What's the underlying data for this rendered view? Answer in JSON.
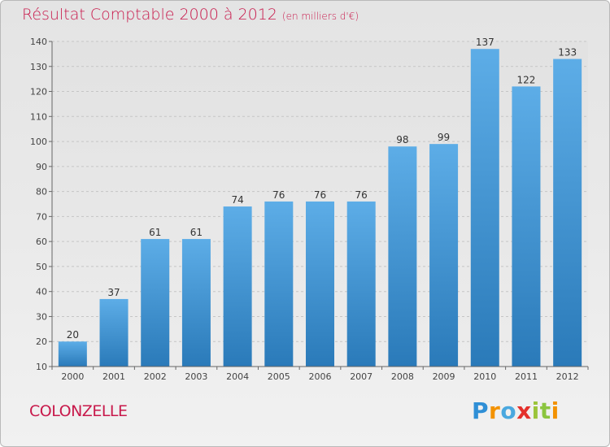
{
  "title": "Résultat Comptable 2000 à 2012",
  "subtitle": "(en milliers d'€)",
  "place": "COLONZELLE",
  "logo": {
    "letters": [
      "P",
      "r",
      "o",
      "x",
      "i",
      "t",
      "i"
    ],
    "colors": [
      "#2f8fd6",
      "#f39200",
      "#4aa8df",
      "#e4302b",
      "#9bc43a",
      "#8bc53f",
      "#f39200"
    ]
  },
  "colors": {
    "title": "#c8194b",
    "bar_top": "#5dade7",
    "bar_bottom": "#2a7ab9",
    "axis": "#666666",
    "grid": "#c5c5c5"
  },
  "chart_data": {
    "type": "bar",
    "categories": [
      "2000",
      "2001",
      "2002",
      "2003",
      "2004",
      "2005",
      "2006",
      "2007",
      "2008",
      "2009",
      "2010",
      "2011",
      "2012"
    ],
    "values": [
      20,
      37,
      61,
      61,
      74,
      76,
      76,
      76,
      98,
      99,
      137,
      122,
      133
    ],
    "ylim": [
      10,
      140
    ],
    "yticks": [
      10,
      20,
      30,
      40,
      50,
      60,
      70,
      80,
      90,
      100,
      110,
      120,
      130,
      140
    ],
    "data_labels": true,
    "grid": "horizontal dashed"
  }
}
